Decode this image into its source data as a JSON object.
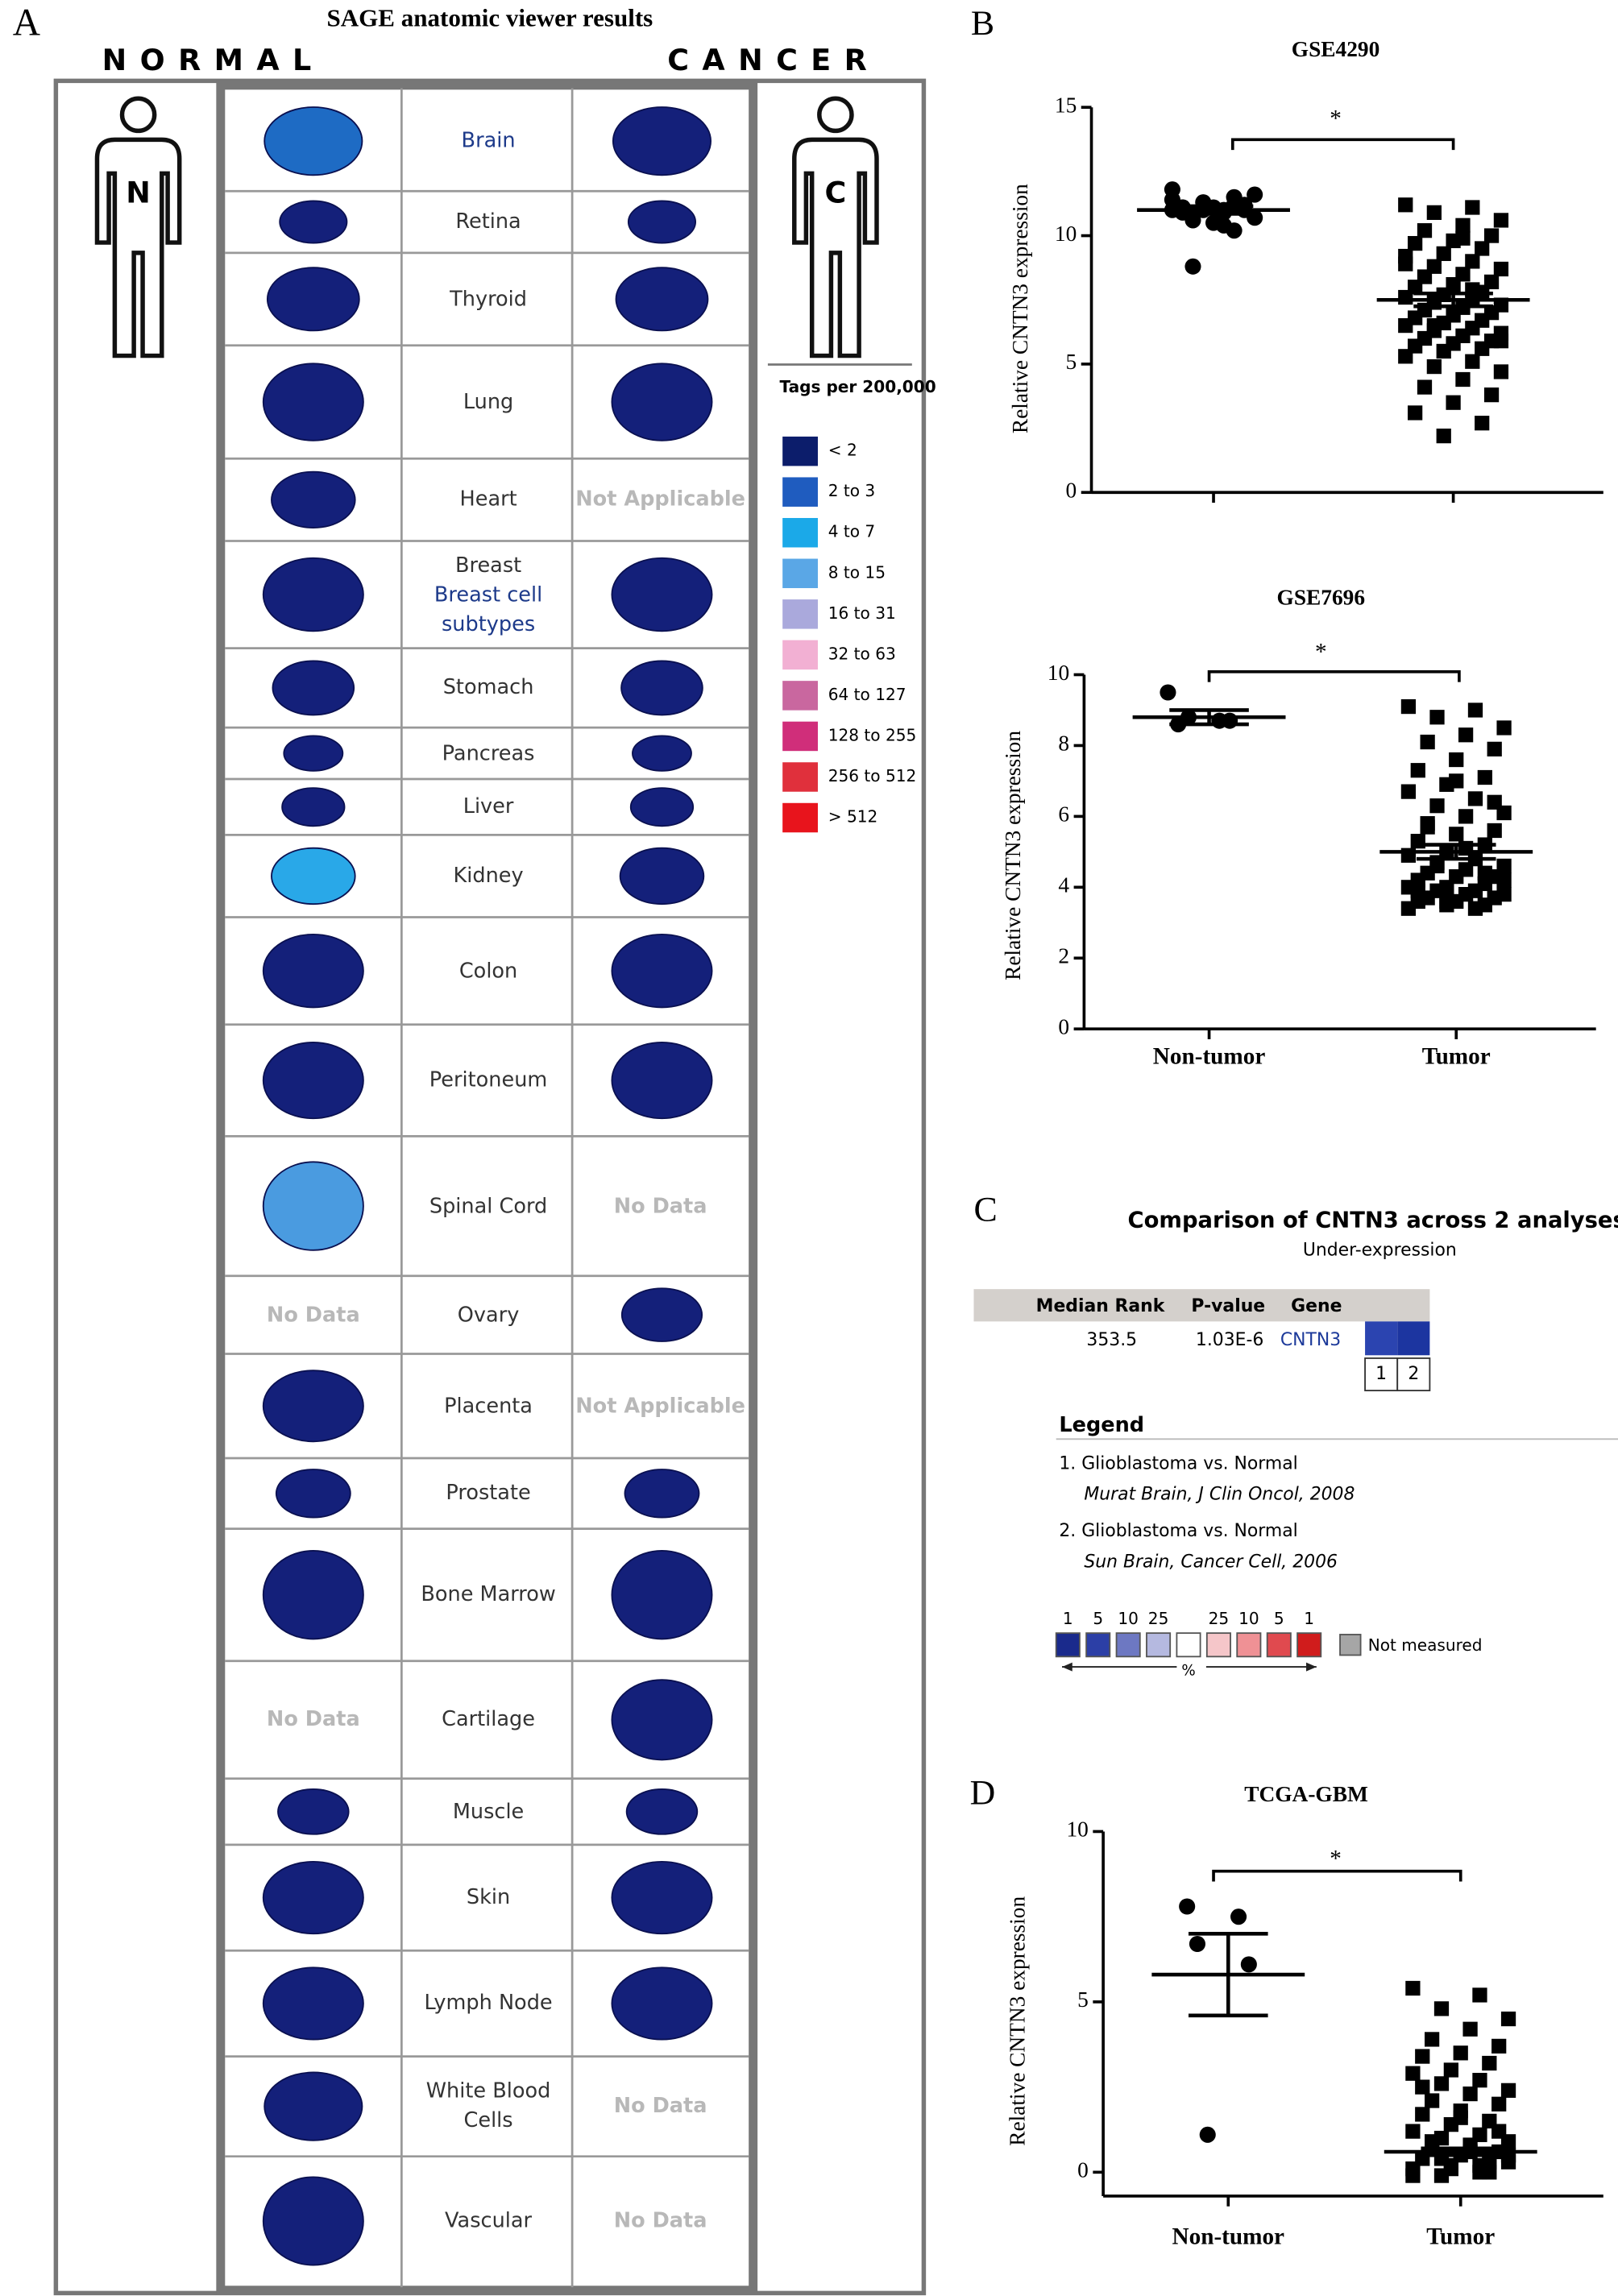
{
  "panel_a": {
    "label": "A",
    "title": "SAGE anatomic viewer results",
    "normal_heading": "NORMAL",
    "cancer_heading": "CANCER",
    "normal_badge": "N",
    "cancer_badge": "C",
    "legend_title": "Tags per 200,000",
    "legend": [
      {
        "label": "< 2",
        "color": "#0c1d6b"
      },
      {
        "label": "2 to 3",
        "color": "#1f5cbf"
      },
      {
        "label": "4 to 7",
        "color": "#1ba9e8"
      },
      {
        "label": "8 to 15",
        "color": "#5aa7e6"
      },
      {
        "label": "16 to 31",
        "color": "#aaa9dc"
      },
      {
        "label": "32 to 63",
        "color": "#f2b0d3"
      },
      {
        "label": "64 to 127",
        "color": "#c9679f"
      },
      {
        "label": "128 to 255",
        "color": "#d02e7a"
      },
      {
        "label": "256 to 512",
        "color": "#e0303c"
      },
      {
        "label": "> 512",
        "color": "#e8141c"
      }
    ],
    "rows": [
      {
        "tissue_link": "Brain",
        "normal_color": "#1e6bc4",
        "cancer_color": "#14207a"
      },
      {
        "tissue": "Retina",
        "normal_color": "#14207a",
        "cancer_color": "#14207a"
      },
      {
        "tissue": "Thyroid",
        "normal_color": "#14207a",
        "cancer_color": "#14207a"
      },
      {
        "tissue": "Lung",
        "normal_color": "#14207a",
        "cancer_color": "#14207a"
      },
      {
        "tissue": "Heart",
        "normal_color": "#14207a",
        "cancer_text": "Not Applicable"
      },
      {
        "tissue": "Breast",
        "tissue_link": "Breast cell subtypes",
        "normal_color": "#14207a",
        "cancer_color": "#14207a"
      },
      {
        "tissue": "Stomach",
        "normal_color": "#14207a",
        "cancer_color": "#14207a"
      },
      {
        "tissue": "Pancreas",
        "normal_color": "#14207a",
        "cancer_color": "#14207a"
      },
      {
        "tissue": "Liver",
        "normal_color": "#14207a",
        "cancer_color": "#14207a"
      },
      {
        "tissue": "Kidney",
        "normal_color": "#29a8e8",
        "cancer_color": "#14207a"
      },
      {
        "tissue": "Colon",
        "normal_color": "#14207a",
        "cancer_color": "#14207a"
      },
      {
        "tissue": "Peritoneum",
        "normal_color": "#14207a",
        "cancer_color": "#14207a"
      },
      {
        "tissue": "Spinal Cord",
        "normal_color": "#4a9be0",
        "cancer_text": "No Data"
      },
      {
        "tissue": "Ovary",
        "normal_text": "No Data",
        "cancer_color": "#14207a"
      },
      {
        "tissue": "Placenta",
        "normal_color": "#14207a",
        "cancer_text": "Not Applicable"
      },
      {
        "tissue": "Prostate",
        "normal_color": "#14207a",
        "cancer_color": "#14207a"
      },
      {
        "tissue": "Bone Marrow",
        "normal_color": "#14207a",
        "cancer_color": "#14207a"
      },
      {
        "tissue": "Cartilage",
        "normal_text": "No Data",
        "cancer_color": "#14207a"
      },
      {
        "tissue": "Muscle",
        "normal_color": "#14207a",
        "cancer_color": "#14207a"
      },
      {
        "tissue": "Skin",
        "normal_color": "#14207a",
        "cancer_color": "#14207a"
      },
      {
        "tissue": "Lymph Node",
        "normal_color": "#14207a",
        "cancer_color": "#14207a"
      },
      {
        "tissue": "White Blood Cells",
        "normal_color": "#14207a",
        "cancer_text": "No Data"
      },
      {
        "tissue": "Vascular",
        "normal_color": "#14207a",
        "cancer_text": "No Data"
      }
    ]
  },
  "panel_labels": {
    "b": "B",
    "c": "C",
    "d": "D"
  },
  "chart_data": [
    {
      "type": "scatter",
      "title": "GSE4290",
      "y_label": "Relative CNTN3 expression",
      "categories": [
        null,
        null
      ],
      "ylim": [
        0,
        15
      ],
      "yticks": [
        0,
        5,
        10,
        15
      ],
      "annotation": "*",
      "series": [
        {
          "marker": "circle",
          "color": "#000000",
          "mean": 11.0,
          "error": 0.15,
          "values": [
            11.0,
            10.9,
            11.1,
            11.2,
            10.8,
            11.0,
            11.3,
            10.7,
            11.1,
            11.4,
            11.0,
            10.9,
            11.5,
            10.6,
            11.2,
            11.0,
            11.6,
            10.5,
            11.8,
            10.4,
            11.1,
            10.2,
            8.8
          ]
        },
        {
          "marker": "square",
          "color": "#000000",
          "mean": 7.5,
          "error": 0.25,
          "values": [
            11.2,
            11.1,
            10.9,
            10.6,
            10.4,
            10.2,
            10.0,
            9.8,
            9.7,
            9.5,
            9.3,
            9.2,
            9.0,
            8.8,
            8.7,
            8.5,
            8.4,
            8.2,
            8.1,
            8.0,
            7.8,
            7.7,
            7.6,
            7.5,
            7.4,
            7.3,
            7.2,
            7.1,
            7.0,
            6.9,
            6.8,
            6.7,
            6.6,
            6.5,
            6.4,
            6.3,
            6.2,
            6.1,
            6.0,
            5.9,
            5.8,
            5.7,
            5.6,
            5.5,
            5.3,
            5.1,
            4.9,
            4.7,
            4.4,
            4.1,
            3.8,
            3.5,
            3.1,
            2.7,
            2.2,
            8.9,
            7.9,
            6.5,
            5.9,
            9.9
          ]
        }
      ]
    },
    {
      "type": "scatter",
      "title": "GSE7696",
      "y_label": "Relative CNTN3 expression",
      "categories": [
        "Non-tumor",
        "Tumor"
      ],
      "ylim": [
        0,
        10
      ],
      "yticks": [
        0,
        2,
        4,
        6,
        8,
        10
      ],
      "annotation": "*",
      "series": [
        {
          "marker": "circle",
          "color": "#000000",
          "mean": 8.8,
          "error": 0.2,
          "values": [
            9.5,
            8.7,
            8.6,
            8.7,
            8.8
          ]
        },
        {
          "marker": "square",
          "color": "#000000",
          "mean": 5.0,
          "error": 0.2,
          "values": [
            9.1,
            9.0,
            8.8,
            8.5,
            8.3,
            8.1,
            7.9,
            7.6,
            7.3,
            7.1,
            6.9,
            6.7,
            6.5,
            6.3,
            6.1,
            6.0,
            5.8,
            5.6,
            5.5,
            5.3,
            5.2,
            5.0,
            4.9,
            4.8,
            4.7,
            4.6,
            4.5,
            4.4,
            4.3,
            4.3,
            4.2,
            4.1,
            4.0,
            4.0,
            3.9,
            3.9,
            3.8,
            3.8,
            3.7,
            3.7,
            3.6,
            3.6,
            3.5,
            3.5,
            3.4,
            3.4,
            4.6,
            4.2,
            5.1,
            5.7,
            6.4,
            7.0,
            3.9,
            4.4,
            3.6
          ]
        }
      ]
    },
    {
      "type": "scatter",
      "title": "TCGA-GBM",
      "y_label": "Relative CNTN3 expression",
      "categories": [
        "Non-tumor",
        "Tumor"
      ],
      "ylim": [
        -0.7,
        10
      ],
      "yticks": [
        0,
        5,
        10
      ],
      "annotation": "*",
      "series": [
        {
          "marker": "circle",
          "color": "#000000",
          "mean": 5.8,
          "error": 1.2,
          "values": [
            7.8,
            7.5,
            6.7,
            6.1,
            1.1
          ]
        },
        {
          "marker": "square",
          "color": "#000000",
          "mean": 0.6,
          "error": 0.1,
          "values": [
            5.4,
            5.2,
            4.8,
            4.5,
            4.2,
            3.9,
            3.7,
            3.5,
            3.4,
            3.2,
            3.0,
            2.9,
            2.7,
            2.6,
            2.4,
            2.3,
            2.1,
            2.0,
            1.8,
            1.7,
            1.5,
            1.4,
            1.2,
            1.1,
            1.0,
            0.9,
            0.8,
            0.7,
            0.6,
            0.5,
            0.4,
            0.3,
            0.2,
            0.1,
            0,
            -0.1,
            0.3,
            0.6,
            0.9,
            1.2,
            1.6,
            2.5,
            0,
            0.1,
            -0.1,
            0.2,
            0.4,
            0.5
          ]
        }
      ]
    }
  ],
  "panel_c": {
    "title": "Comparison of CNTN3 across 2 analyses",
    "subtitle": "Under-expression",
    "header": [
      "Median Rank",
      "P-value",
      "Gene"
    ],
    "row": [
      "353.5",
      "1.03E-6",
      "CNTN3"
    ],
    "analysis_cells": [
      {
        "label": "1",
        "color": "#2b44b0"
      },
      {
        "label": "2",
        "color": "#1c35a0"
      }
    ],
    "legend_title": "Legend",
    "legend_items": [
      {
        "title": "1. Glioblastoma vs. Normal",
        "source": "Murat Brain, J Clin Oncol, 2008"
      },
      {
        "title": "2. Glioblastoma vs. Normal",
        "source": "Sun Brain, Cancer Cell, 2006"
      }
    ],
    "scale": [
      {
        "label": "1",
        "color": "#1a2a8c"
      },
      {
        "label": "5",
        "color": "#2c3fa6"
      },
      {
        "label": "10",
        "color": "#6d78c2"
      },
      {
        "label": "25",
        "color": "#b5b9e0"
      },
      {
        "color": "#ffffff"
      },
      {
        "label": "25",
        "color": "#f5c6c9"
      },
      {
        "label": "10",
        "color": "#ef9195"
      },
      {
        "label": "5",
        "color": "#e04a4f"
      },
      {
        "label": "1",
        "color": "#d01c1c"
      }
    ],
    "scale_unit": "%",
    "not_measured": {
      "label": "Not measured",
      "color": "#a6a6a6"
    }
  }
}
